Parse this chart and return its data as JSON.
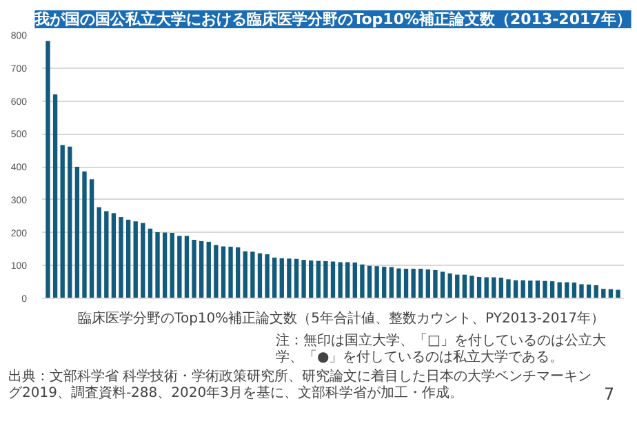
{
  "chart_data": {
    "type": "bar",
    "title": "我が国の国公私立大学における臨床医学分野のTop10%補正論文数（2013-2017年）",
    "categories": [
      null,
      null,
      null,
      null,
      null,
      null,
      null,
      null,
      null,
      null,
      null,
      null,
      null,
      null,
      null,
      null,
      null,
      null,
      null,
      null,
      null,
      null,
      null,
      null,
      null,
      null,
      null,
      null,
      null,
      null,
      null,
      null,
      null,
      null,
      null,
      null,
      null,
      null,
      null,
      null,
      null,
      null,
      null,
      null,
      null,
      null,
      null,
      null,
      null,
      null,
      null,
      null,
      null,
      null,
      null,
      null,
      null,
      null,
      null,
      null,
      null,
      null,
      null,
      null,
      null,
      null,
      null,
      null,
      null,
      null,
      null,
      null,
      null,
      null,
      null,
      null,
      null,
      null,
      null
    ],
    "series": [
      {
        "name": "臨床医学分野のTop10%補正論文数（5年合計値、整数カウント、PY2013-2017年）",
        "color": "#125b7c",
        "values": [
          782,
          620,
          466,
          461,
          400,
          386,
          362,
          277,
          265,
          259,
          247,
          239,
          234,
          229,
          212,
          201,
          200,
          199,
          190,
          190,
          178,
          174,
          172,
          162,
          158,
          157,
          155,
          143,
          142,
          137,
          134,
          124,
          122,
          121,
          120,
          117,
          115,
          114,
          113,
          112,
          110,
          110,
          109,
          103,
          99,
          98,
          96,
          95,
          91,
          90,
          90,
          90,
          88,
          86,
          81,
          76,
          72,
          72,
          69,
          65,
          64,
          64,
          63,
          58,
          55,
          55,
          54,
          54,
          53,
          52,
          49,
          49,
          48,
          43,
          42,
          40,
          29,
          28,
          26
        ]
      }
    ],
    "ylim": [
      0,
      800
    ],
    "yticks": [
      0,
      100,
      200,
      300,
      400,
      500,
      600,
      700,
      800
    ],
    "grid": "y",
    "legend": "bottom",
    "annotations": [
      "注：無印は国立大学、「□」を付しているのは公立大学、「●」を付しているのは私立大学である。",
      "出典：文部科学省 科学技術・学術政策研究所、研究論文に着目した日本の大学ベンチマーキング2019、調査資料-288、2020年3月を基に、文部科学省が加工・作成。",
      "7"
    ]
  }
}
